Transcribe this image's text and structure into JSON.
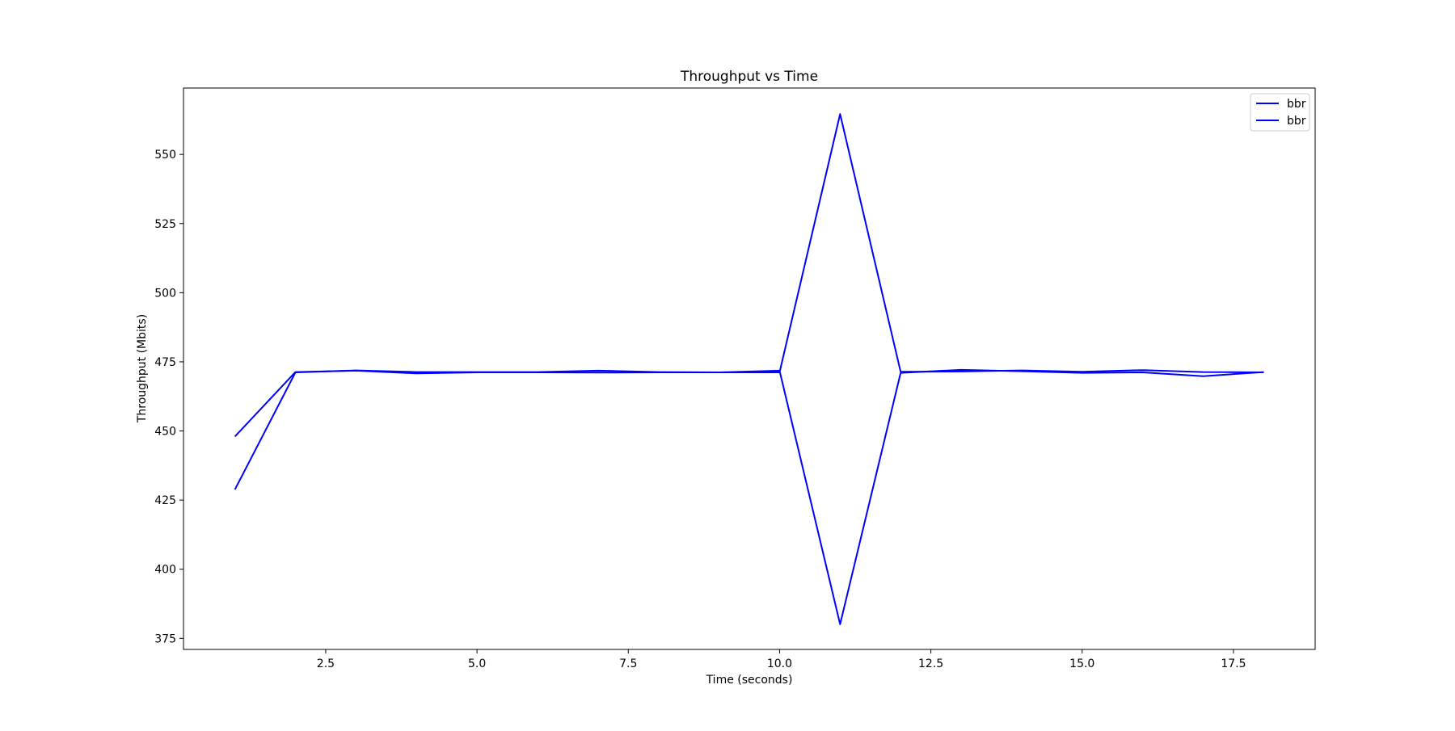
{
  "chart_data": {
    "type": "line",
    "title": "Throughput vs Time",
    "xlabel": "Time (seconds)",
    "ylabel": "Throughput (Mbits)",
    "xlim": [
      0.15,
      18.85
    ],
    "ylim": [
      371,
      574
    ],
    "xticks": [
      2.5,
      5.0,
      7.5,
      10.0,
      12.5,
      15.0,
      17.5
    ],
    "xtick_labels": [
      "2.5",
      "5.0",
      "7.5",
      "10.0",
      "12.5",
      "15.0",
      "17.5"
    ],
    "yticks": [
      375,
      400,
      425,
      450,
      475,
      500,
      525,
      550
    ],
    "ytick_labels": [
      "375",
      "400",
      "425",
      "450",
      "475",
      "500",
      "525",
      "550"
    ],
    "grid": false,
    "legend_position": "top-right",
    "series": [
      {
        "name": "bbr",
        "color": "#0000ff",
        "x": [
          1,
          2,
          3,
          4,
          5,
          6,
          7,
          8,
          9,
          10,
          11,
          12,
          13,
          14,
          15,
          16,
          17,
          18
        ],
        "y": [
          448,
          471.3,
          471.8,
          470.8,
          471.2,
          471.2,
          471.1,
          471.2,
          471.2,
          471.2,
          564.6,
          471.4,
          471.5,
          471.9,
          471.4,
          472.0,
          471.3,
          471.2
        ]
      },
      {
        "name": "bbr",
        "color": "#0000ff",
        "x": [
          1,
          2,
          3,
          4,
          5,
          6,
          7,
          8,
          9,
          10,
          11,
          12,
          13,
          14,
          15,
          16,
          17,
          18
        ],
        "y": [
          428.8,
          471.2,
          471.9,
          471.3,
          471.3,
          471.3,
          471.8,
          471.3,
          471.2,
          471.8,
          380.1,
          471.0,
          472.1,
          471.6,
          471.0,
          471.2,
          469.8,
          471.3
        ]
      }
    ]
  }
}
